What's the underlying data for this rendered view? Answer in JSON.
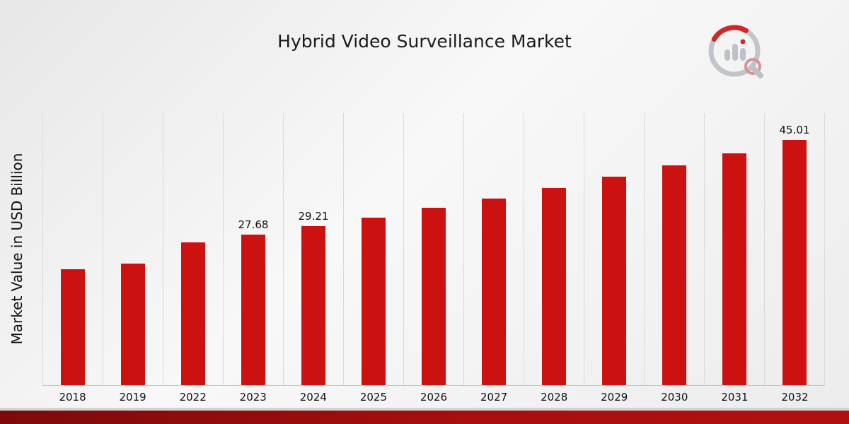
{
  "chart_data": {
    "type": "bar",
    "title": "Hybrid Video Surveillance Market",
    "ylabel": "Market Value in USD Billion",
    "xlabel": "",
    "ylim": [
      0,
      50
    ],
    "grid": "vertical",
    "legend": "none",
    "bar_color": "#CC1111",
    "categories": [
      "2018",
      "2019",
      "2022",
      "2023",
      "2024",
      "2025",
      "2026",
      "2027",
      "2028",
      "2029",
      "2030",
      "2031",
      "2032"
    ],
    "values": [
      21.3,
      22.4,
      26.2,
      27.68,
      29.21,
      30.8,
      32.6,
      34.3,
      36.3,
      38.3,
      40.4,
      42.6,
      45.01
    ],
    "data_labels": [
      "",
      "",
      "",
      "27.68",
      "29.21",
      "",
      "",
      "",
      "",
      "",
      "",
      "",
      "45.01"
    ]
  },
  "branding": {
    "logo_icon": "bar-chart-magnifier-logo"
  },
  "footer": {
    "accent_color": "#A80E0E"
  }
}
